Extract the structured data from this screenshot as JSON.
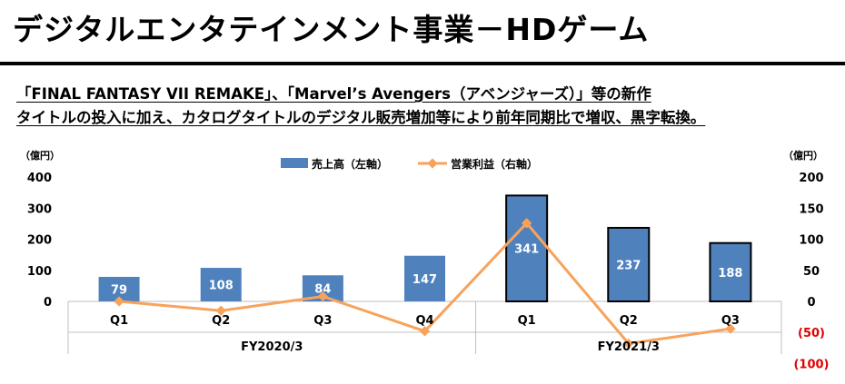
{
  "header": {
    "title": "デジタルエンタテインメント事業－HDゲーム",
    "subtitle_line1": "「FINAL FANTASY VII REMAKE」、「Marvel’s Avengers（アベンジャーズ）」等の新作",
    "subtitle_line2": "タイトルの投入に加え、カタログタイトルのデジタル販売増加等により前年同期比で増収、黒字転換。"
  },
  "chart_data": {
    "type": "bar+line",
    "y_left_unit": "（億円）",
    "y_right_unit": "（億円）",
    "y_left_ticks": [
      "400",
      "300",
      "200",
      "100",
      "0"
    ],
    "y_right_ticks": [
      "200",
      "150",
      "100",
      "50",
      "0",
      "(50)",
      "(100)"
    ],
    "y_left_range": [
      0,
      400
    ],
    "y_right_range": [
      -100,
      200
    ],
    "categories": [
      "Q1",
      "Q2",
      "Q3",
      "Q4",
      "Q1",
      "Q2",
      "Q3"
    ],
    "groups": [
      {
        "label": "FY2020/3",
        "count": 4
      },
      {
        "label": "FY2021/3",
        "count": 3
      }
    ],
    "series": [
      {
        "name": "売上高（左軸）",
        "type": "bar",
        "axis": "left",
        "values": [
          79,
          108,
          84,
          147,
          341,
          237,
          188
        ],
        "labels": [
          "79",
          "108",
          "84",
          "147",
          "341",
          "237",
          "188"
        ]
      },
      {
        "name": "営業利益（右軸）",
        "type": "line",
        "axis": "right",
        "values": [
          0,
          -15,
          8,
          -48,
          126,
          -68,
          -44
        ]
      }
    ],
    "colors": {
      "bar": "#4f81bd",
      "line": "#f7a35c",
      "negative_tick": "#e00000"
    }
  }
}
